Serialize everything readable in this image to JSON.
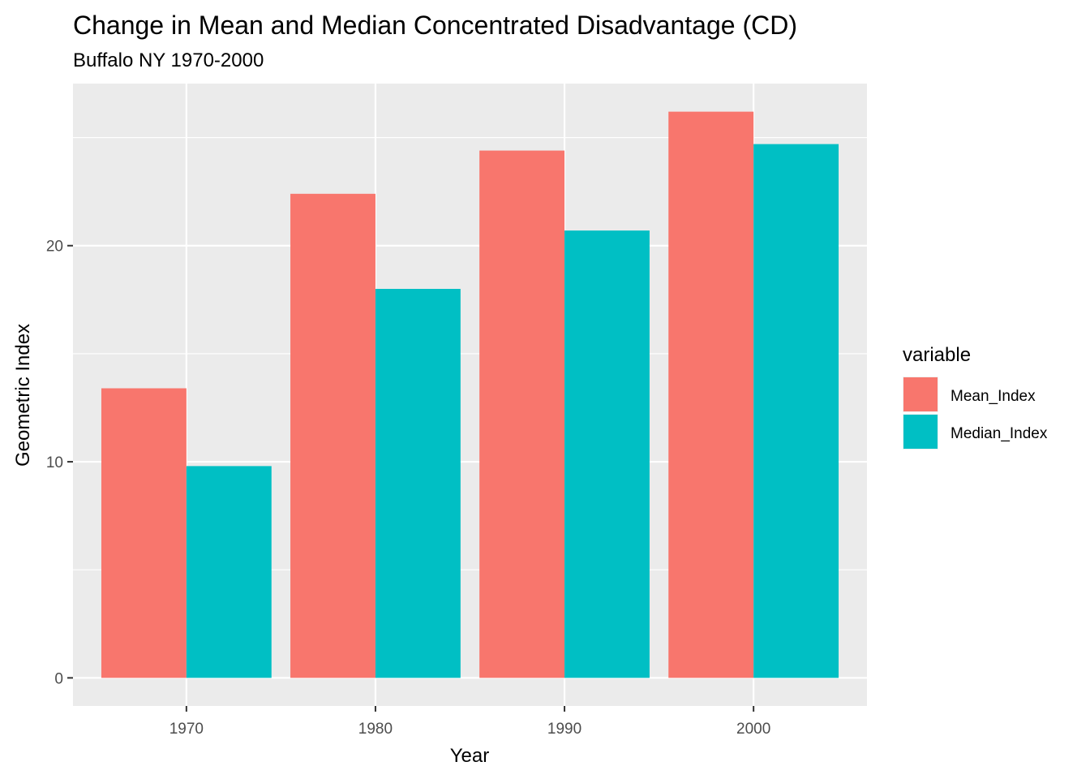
{
  "chart_data": {
    "type": "bar",
    "title": "Change in Mean and Median Concentrated Disadvantage (CD)",
    "subtitle": "Buffalo NY 1970-2000",
    "xlabel": "Year",
    "ylabel": "Geometric Index",
    "categories": [
      "1970",
      "1980",
      "1990",
      "2000"
    ],
    "series": [
      {
        "name": "Mean_Index",
        "color": "#F8766D",
        "values": [
          13.4,
          22.4,
          24.4,
          26.2
        ]
      },
      {
        "name": "Median_Index",
        "color": "#00BFC4",
        "values": [
          9.8,
          18.0,
          20.7,
          24.7
        ]
      }
    ],
    "ylim": [
      -1.3,
      27.5
    ],
    "yticks": [
      0,
      10,
      20
    ],
    "y_minor_gridlines": [
      5,
      15,
      25
    ],
    "grid": true,
    "panel_background": "#EBEBEB",
    "legend": {
      "title": "variable",
      "position": "right"
    }
  }
}
